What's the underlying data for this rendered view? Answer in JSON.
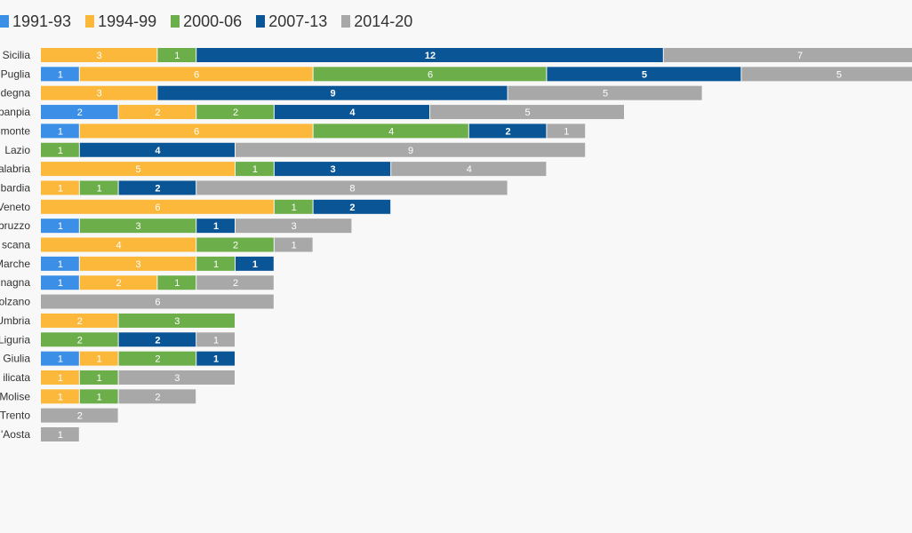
{
  "chart_data": {
    "type": "bar",
    "orientation": "horizontal",
    "stacked": true,
    "legend_position": "top-left",
    "grid": false,
    "xlim": [
      0,
      22.5
    ],
    "categories": [
      "Sicilia",
      "Puglia",
      "degna",
      "panpia",
      "monte",
      "Lazio",
      "alabria",
      "bardia",
      "Veneto",
      "bruzzo",
      "scana",
      "Marche",
      "nagna",
      "olzano",
      "Umbria",
      "Liguria",
      "Giulia",
      "ilicata",
      "Molise",
      "Trento",
      "'Aosta"
    ],
    "series": [
      {
        "name": "1991-93",
        "color": "#3b8fe6",
        "values": [
          0,
          1,
          0,
          2,
          1,
          0,
          0,
          0,
          0,
          1,
          0,
          1,
          1,
          0,
          0,
          0,
          1,
          0,
          0,
          0,
          0
        ]
      },
      {
        "name": "1994-99",
        "color": "#fbb83a",
        "values": [
          3,
          6,
          3,
          2,
          6,
          0,
          5,
          1,
          6,
          0,
          4,
          3,
          2,
          0,
          2,
          0,
          1,
          1,
          1,
          0,
          0
        ]
      },
      {
        "name": "2000-06",
        "color": "#6cae4a",
        "values": [
          1,
          6,
          0,
          2,
          4,
          1,
          1,
          1,
          1,
          3,
          2,
          1,
          1,
          0,
          3,
          2,
          2,
          1,
          1,
          0,
          0
        ]
      },
      {
        "name": "2007-13",
        "color": "#0a5596",
        "values": [
          12,
          5,
          9,
          4,
          2,
          4,
          3,
          2,
          2,
          1,
          0,
          1,
          0,
          0,
          0,
          2,
          1,
          0,
          0,
          0,
          0
        ]
      },
      {
        "name": "2014-20",
        "color": "#a8a8a8",
        "values": [
          7,
          5,
          5,
          5,
          1,
          9,
          4,
          8,
          0,
          3,
          1,
          0,
          2,
          6,
          0,
          1,
          0,
          3,
          2,
          2,
          1
        ]
      }
    ]
  }
}
